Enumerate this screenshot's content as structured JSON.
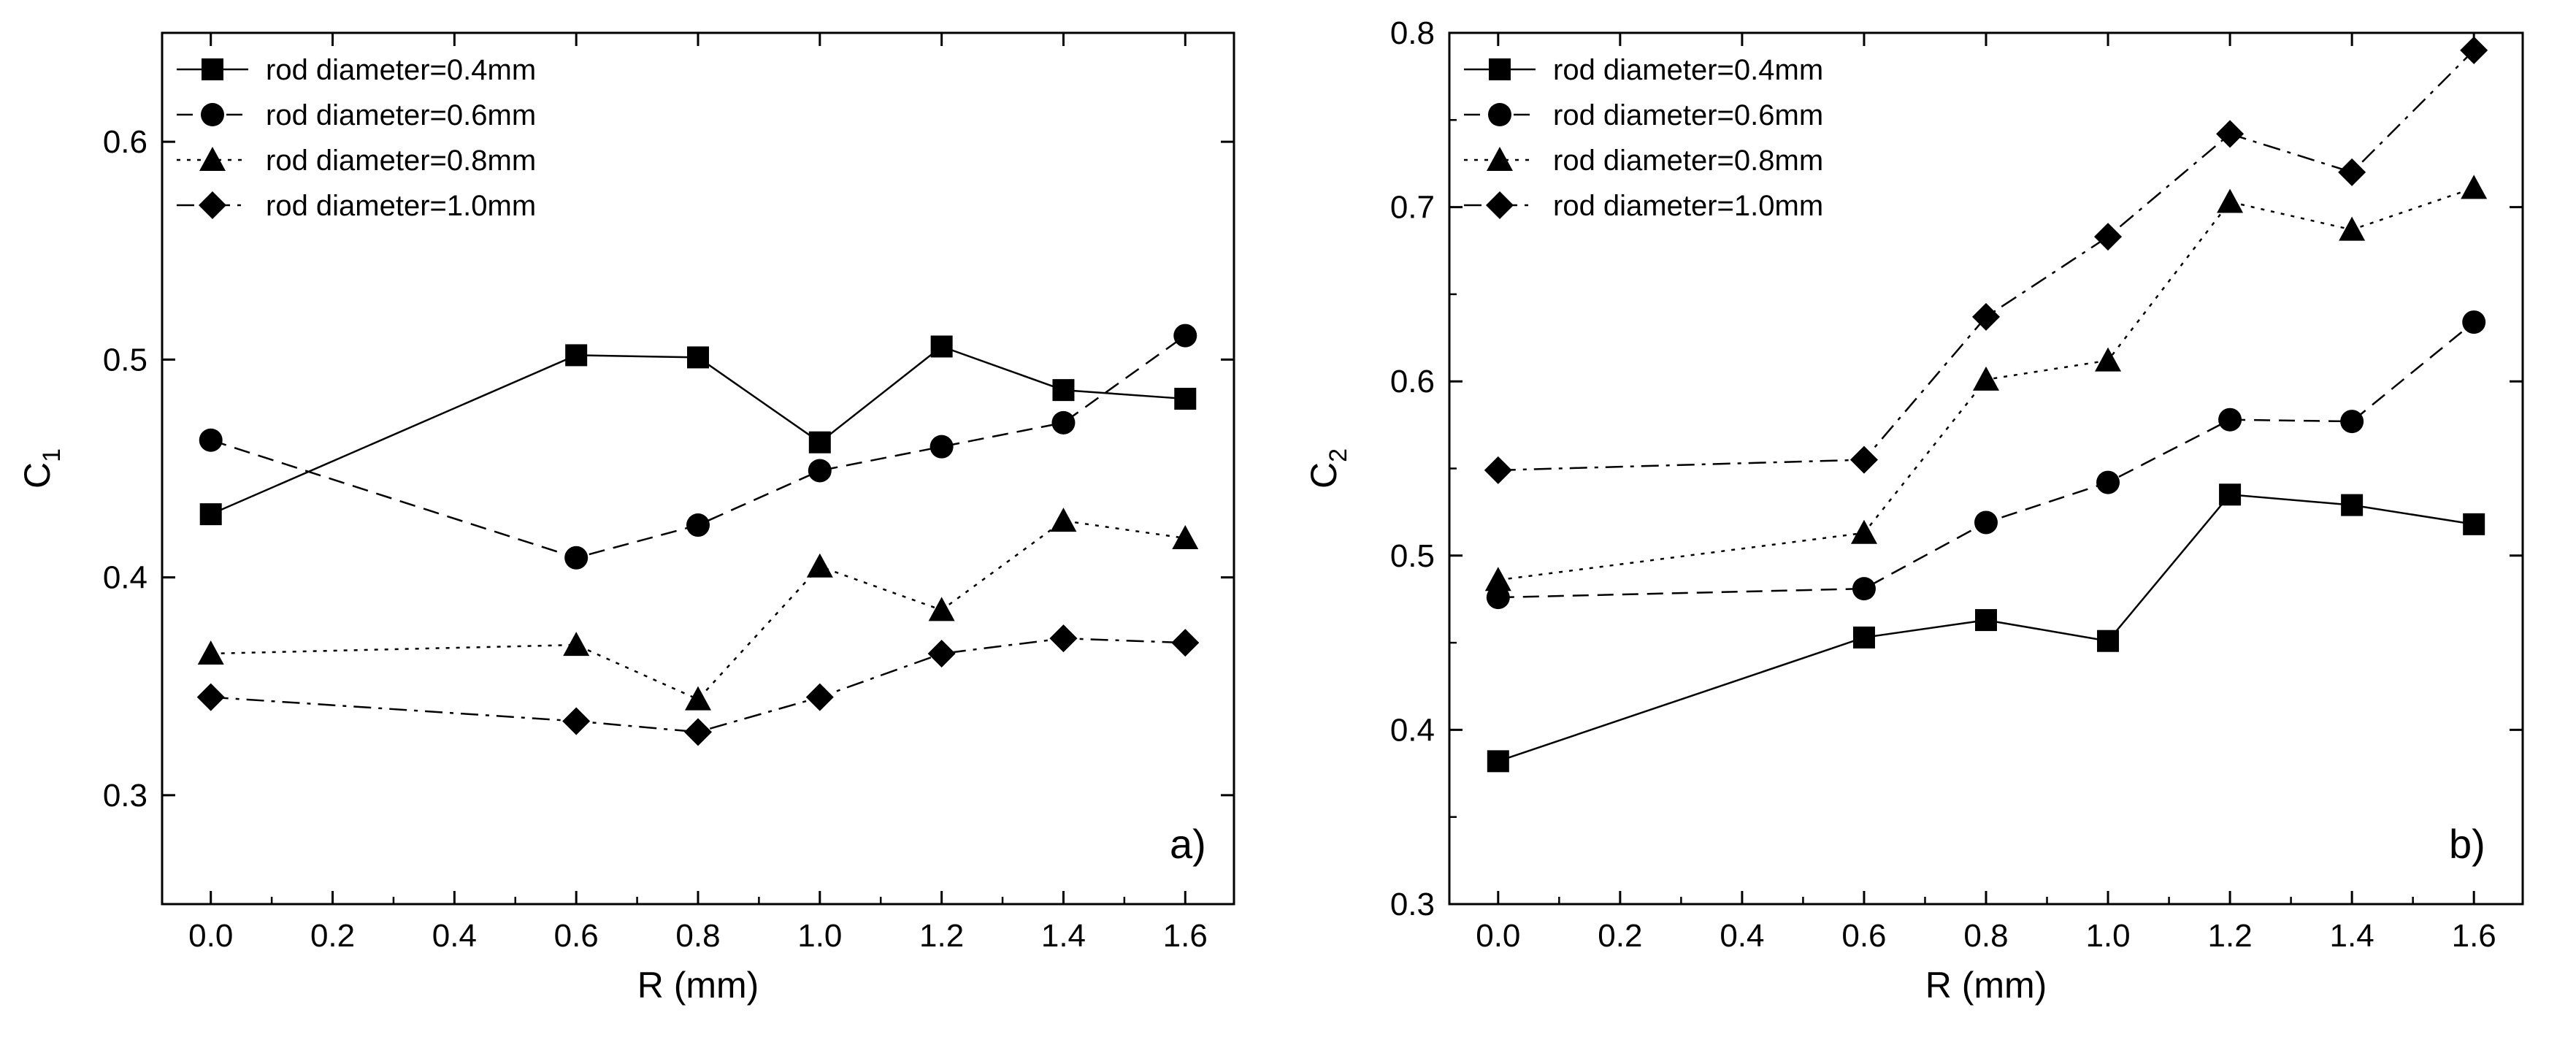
{
  "figure": {
    "panels": [
      "a)",
      "b)"
    ]
  },
  "chart_data": [
    {
      "type": "line",
      "panel_label": "a)",
      "xlabel": "R (mm)",
      "ylabel": "C",
      "ylabel_sub": "1",
      "xlim": [
        -0.08,
        1.68
      ],
      "ylim": [
        0.25,
        0.65
      ],
      "xticks": [
        "0.0",
        "0.2",
        "0.4",
        "0.6",
        "0.8",
        "1.0",
        "1.2",
        "1.4",
        "1.6"
      ],
      "yticks": [
        "0.3",
        "0.4",
        "0.5",
        "0.6"
      ],
      "legend_position": "top-left",
      "grid": false,
      "series": [
        {
          "name": "rod diameter=0.4mm",
          "marker": "square",
          "dash": "solid",
          "x": [
            0.0,
            0.6,
            0.8,
            1.0,
            1.2,
            1.4,
            1.6
          ],
          "y": [
            0.429,
            0.502,
            0.501,
            0.462,
            0.506,
            0.486,
            0.482
          ]
        },
        {
          "name": "rod diameter=0.6mm",
          "marker": "circle",
          "dash": "dash",
          "x": [
            0.0,
            0.6,
            0.8,
            1.0,
            1.2,
            1.4,
            1.6
          ],
          "y": [
            0.463,
            0.409,
            0.424,
            0.449,
            0.46,
            0.471,
            0.511
          ]
        },
        {
          "name": "rod diameter=0.8mm",
          "marker": "triangle",
          "dash": "dot",
          "x": [
            0.0,
            0.6,
            0.8,
            1.0,
            1.2,
            1.4,
            1.6
          ],
          "y": [
            0.365,
            0.369,
            0.344,
            0.405,
            0.385,
            0.426,
            0.418
          ]
        },
        {
          "name": "rod diameter=1.0mm",
          "marker": "diamond",
          "dash": "dashdot",
          "x": [
            0.0,
            0.6,
            0.8,
            1.0,
            1.2,
            1.4,
            1.6
          ],
          "y": [
            0.345,
            0.334,
            0.329,
            0.345,
            0.365,
            0.372,
            0.37
          ]
        }
      ]
    },
    {
      "type": "line",
      "panel_label": "b)",
      "xlabel": "R (mm)",
      "ylabel": "C",
      "ylabel_sub": "2",
      "xlim": [
        -0.08,
        1.68
      ],
      "ylim": [
        0.3,
        0.8
      ],
      "xticks": [
        "0.0",
        "0.2",
        "0.4",
        "0.6",
        "0.8",
        "1.0",
        "1.2",
        "1.4",
        "1.6"
      ],
      "yticks": [
        "0.3",
        "0.4",
        "0.5",
        "0.6",
        "0.7",
        "0.8"
      ],
      "legend_position": "top-left",
      "grid": false,
      "series": [
        {
          "name": "rod diameter=0.4mm",
          "marker": "square",
          "dash": "solid",
          "x": [
            0.0,
            0.6,
            0.8,
            1.0,
            1.2,
            1.4,
            1.6
          ],
          "y": [
            0.382,
            0.453,
            0.463,
            0.451,
            0.535,
            0.529,
            0.518
          ]
        },
        {
          "name": "rod diameter=0.6mm",
          "marker": "circle",
          "dash": "dash",
          "x": [
            0.0,
            0.6,
            0.8,
            1.0,
            1.2,
            1.4,
            1.6
          ],
          "y": [
            0.476,
            0.481,
            0.519,
            0.542,
            0.578,
            0.577,
            0.634
          ]
        },
        {
          "name": "rod diameter=0.8mm",
          "marker": "triangle",
          "dash": "dot",
          "x": [
            0.0,
            0.6,
            0.8,
            1.0,
            1.2,
            1.4,
            1.6
          ],
          "y": [
            0.486,
            0.513,
            0.601,
            0.612,
            0.703,
            0.687,
            0.711
          ]
        },
        {
          "name": "rod diameter=1.0mm",
          "marker": "diamond",
          "dash": "dashdot",
          "x": [
            0.0,
            0.6,
            0.8,
            1.0,
            1.2,
            1.4,
            1.6
          ],
          "y": [
            0.549,
            0.555,
            0.637,
            0.683,
            0.742,
            0.72,
            0.79
          ]
        }
      ]
    }
  ]
}
